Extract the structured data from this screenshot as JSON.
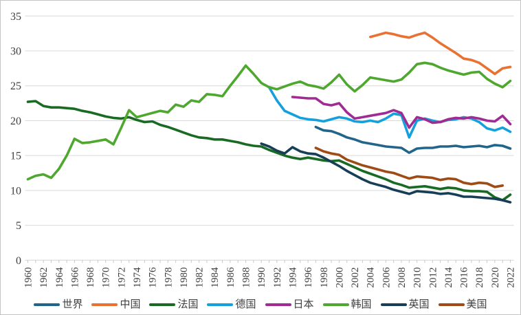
{
  "page": {
    "background": "#FFFFFF",
    "border_color": "#C4C4C4",
    "gridline_color": "#D9D9D9",
    "axis_line_color": "#D3D3D3",
    "tick_mark_color": "#C9C9C9",
    "tick_text_color": "#3F3F3F"
  },
  "chart_data": {
    "type": "line",
    "title": "",
    "xlabel": "",
    "ylabel": "",
    "grid": "horizontal",
    "legend_position": "bottom",
    "x_axis": {
      "start": 1960,
      "end": 2022,
      "label_interval": 2,
      "tick_interval": 1,
      "label_rotation": -90
    },
    "y_axis": {
      "min": 0,
      "max": 35,
      "tick_step": 5
    },
    "x_tick_labels": [
      "1960",
      "1962",
      "1964",
      "1966",
      "1968",
      "1970",
      "1972",
      "1974",
      "1976",
      "1978",
      "1980",
      "1982",
      "1984",
      "1986",
      "1988",
      "1990",
      "1992",
      "1994",
      "1996",
      "1998",
      "2000",
      "2002",
      "2004",
      "2006",
      "2008",
      "2010",
      "2012",
      "2014",
      "2016",
      "2018",
      "2020",
      "2022"
    ],
    "y_tick_labels": [
      "0",
      "5",
      "10",
      "15",
      "20",
      "25",
      "30",
      "35"
    ],
    "series": [
      {
        "key": "world",
        "name": "世界",
        "color": "#21658B",
        "start_year": 1997,
        "values": [
          19.1,
          18.6,
          18.5,
          18.1,
          17.6,
          17.3,
          16.9,
          16.7,
          16.5,
          16.3,
          16.2,
          16.1,
          15.4,
          16.0,
          16.1,
          16.1,
          16.3,
          16.3,
          16.4,
          16.2,
          16.3,
          16.4,
          16.2,
          16.5,
          16.4,
          16.0
        ]
      },
      {
        "key": "china",
        "name": "中国",
        "color": "#E97132",
        "start_year": 2004,
        "values": [
          32.0,
          32.3,
          32.6,
          32.4,
          32.1,
          31.9,
          32.3,
          32.6,
          31.9,
          31.1,
          30.4,
          29.7,
          28.9,
          28.7,
          28.3,
          27.5,
          26.7,
          27.5,
          27.7
        ]
      },
      {
        "key": "france",
        "name": "法国",
        "color": "#196B24",
        "start_year": 1960,
        "values": [
          22.7,
          22.8,
          22.1,
          21.9,
          21.9,
          21.8,
          21.7,
          21.4,
          21.2,
          20.9,
          20.6,
          20.4,
          20.3,
          20.5,
          20.1,
          19.8,
          19.9,
          19.4,
          19.1,
          18.7,
          18.3,
          17.9,
          17.6,
          17.5,
          17.3,
          17.3,
          17.1,
          16.9,
          16.6,
          16.4,
          16.3,
          15.8,
          15.4,
          15.0,
          14.7,
          14.5,
          14.7,
          14.5,
          14.3,
          14.2,
          14.3,
          13.8,
          13.3,
          12.8,
          12.4,
          12.0,
          11.6,
          11.1,
          10.8,
          10.4,
          10.5,
          10.6,
          10.4,
          10.2,
          10.4,
          10.3,
          10.0,
          9.9,
          9.9,
          9.8,
          9.0,
          8.6,
          9.4
        ]
      },
      {
        "key": "germany",
        "name": "德国",
        "color": "#14A0DC",
        "start_year": 1991,
        "values": [
          24.8,
          22.9,
          21.4,
          20.9,
          20.4,
          20.2,
          20.1,
          19.9,
          20.2,
          20.5,
          20.3,
          19.9,
          19.8,
          20.0,
          19.8,
          20.3,
          21.0,
          20.8,
          17.6,
          20.0,
          20.3,
          20.0,
          19.8,
          20.1,
          20.2,
          20.5,
          20.3,
          19.8,
          18.9,
          18.6,
          19.0,
          18.4
        ]
      },
      {
        "key": "japan",
        "name": "日本",
        "color": "#A02B93",
        "start_year": 1994,
        "values": [
          23.4,
          23.3,
          23.2,
          23.2,
          22.4,
          22.2,
          22.5,
          21.2,
          20.3,
          20.5,
          20.7,
          20.9,
          21.1,
          21.5,
          21.1,
          19.0,
          20.5,
          20.2,
          19.7,
          19.8,
          20.2,
          20.4,
          20.3,
          20.5,
          20.3,
          20.0,
          19.9,
          20.7,
          19.5
        ]
      },
      {
        "key": "korea",
        "name": "韩国",
        "color": "#4EA72E",
        "start_year": 1960,
        "values": [
          11.6,
          12.1,
          12.3,
          11.8,
          13.1,
          15.0,
          17.4,
          16.8,
          16.9,
          17.1,
          17.3,
          16.6,
          19.0,
          21.5,
          20.5,
          20.8,
          21.1,
          21.4,
          21.2,
          22.3,
          22.0,
          22.9,
          22.7,
          23.8,
          23.7,
          23.5,
          25.0,
          26.4,
          27.9,
          26.7,
          25.4,
          24.8,
          24.5,
          24.9,
          25.3,
          25.6,
          25.1,
          24.9,
          24.6,
          25.5,
          26.6,
          25.2,
          24.2,
          25.1,
          26.2,
          26.0,
          25.8,
          25.6,
          25.9,
          26.9,
          28.1,
          28.3,
          28.1,
          27.6,
          27.2,
          26.9,
          26.6,
          26.9,
          27.0,
          26.0,
          25.3,
          24.8,
          25.7
        ]
      },
      {
        "key": "uk",
        "name": "英国",
        "color": "#163E57",
        "start_year": 1990,
        "values": [
          16.7,
          16.3,
          15.7,
          15.3,
          16.2,
          15.6,
          15.3,
          15.2,
          14.7,
          14.1,
          13.5,
          12.8,
          12.2,
          11.6,
          11.1,
          10.8,
          10.5,
          10.1,
          9.8,
          9.5,
          9.9,
          9.8,
          9.7,
          9.5,
          9.6,
          9.4,
          9.1,
          9.1,
          9.0,
          8.9,
          8.8,
          8.6,
          8.3
        ]
      },
      {
        "key": "usa",
        "name": "美国",
        "color": "#9E4B16",
        "start_year": 1997,
        "values": [
          16.1,
          15.6,
          15.3,
          15.1,
          14.4,
          14.0,
          13.6,
          13.3,
          13.0,
          12.7,
          12.5,
          12.1,
          11.7,
          12.0,
          11.9,
          11.8,
          11.5,
          11.7,
          11.6,
          11.1,
          10.9,
          11.1,
          11.0,
          10.5,
          10.7
        ]
      }
    ]
  }
}
